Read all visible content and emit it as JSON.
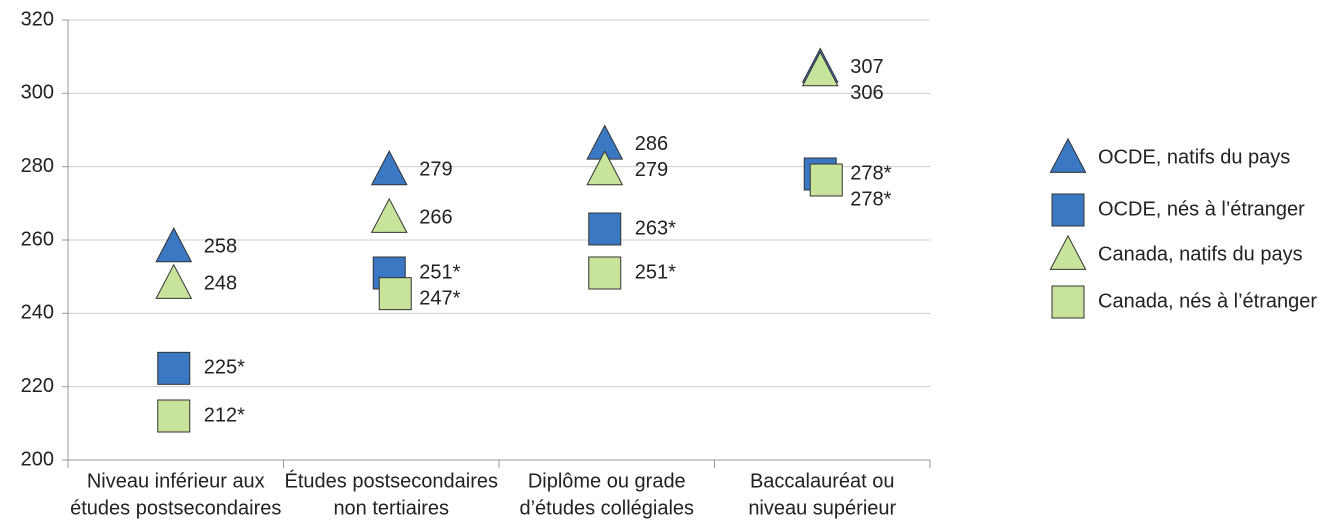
{
  "chart_data": {
    "type": "marker",
    "categories": [
      [
        "Niveau inférieur aux",
        "études postsecondaires"
      ],
      [
        "Études postsecondaires",
        "non tertiaires"
      ],
      [
        "Diplôme ou grade",
        "d’études collégiales"
      ],
      [
        "Baccalauréat ou",
        "niveau supérieur"
      ]
    ],
    "series": [
      {
        "name": "OCDE, natifs du pays",
        "color": "#3b78c3",
        "marker": "triangle",
        "values": [
          258,
          279,
          286,
          307
        ]
      },
      {
        "name": "OCDE, nés à l’étranger",
        "color": "#3b78c3",
        "marker": "square",
        "values": [
          225,
          251,
          263,
          278
        ],
        "value_labels": [
          "225*",
          "251*",
          "263*",
          "278*"
        ]
      },
      {
        "name": "Canada, natifs du pays",
        "color": "#c8e39a",
        "marker": "triangle",
        "values": [
          248,
          266,
          279,
          306
        ]
      },
      {
        "name": "Canada, nés à l’étranger",
        "color": "#c8e39a",
        "marker": "square",
        "values": [
          212,
          247,
          251,
          278
        ],
        "value_labels": [
          "212*",
          "247*",
          "251*",
          "278*"
        ]
      }
    ],
    "ylim": [
      200,
      320
    ],
    "yticks": [
      200,
      220,
      240,
      260,
      280,
      300,
      320
    ],
    "grid": true
  }
}
